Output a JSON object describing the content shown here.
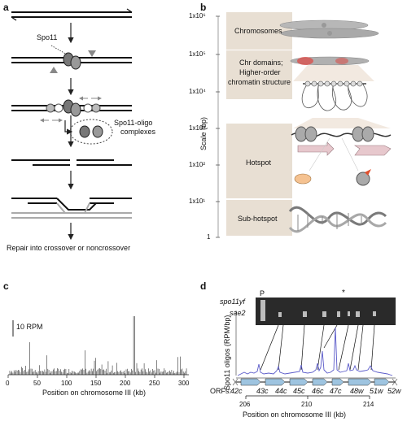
{
  "panels": {
    "a": {
      "letter": "a",
      "spo11_label": "Spo11",
      "complex_label_1": "Spo11-oligo",
      "complex_label_2": "complexes",
      "outcome_label": "Repair into crossover or noncrossover"
    },
    "b": {
      "letter": "b",
      "y_axis_label": "Scale (bp)",
      "ticks": [
        "1x10⁶",
        "1x10⁵",
        "1x10⁴",
        "1x10³",
        "1x10²",
        "1x10¹",
        "1"
      ],
      "levels": [
        {
          "label": "Chromosomes"
        },
        {
          "label_1": "Chr domains;",
          "label_2": "Higher-order",
          "label_3": "chromatin structure"
        },
        {
          "label": "Hotspot"
        },
        {
          "label": "Sub-hotspot"
        }
      ]
    },
    "c": {
      "letter": "c",
      "scale_label": "10 RPM",
      "x_label": "Position on chromosome III (kb)",
      "ticks": [
        "0",
        "50",
        "100",
        "150",
        "200",
        "250",
        "300"
      ]
    },
    "d": {
      "letter": "d",
      "gel_marker": "P",
      "gel_star": "*",
      "lane_1": "spo11yf",
      "lane_2": "sae2",
      "y_label": "Spo11 oligos (RPM/bp)",
      "orf_prefix": "ORFs:",
      "orfs": [
        "42c",
        "43c",
        "44c",
        "45c",
        "46c",
        "47c",
        "48w",
        "51w",
        "52w"
      ],
      "x_ticks": [
        "206",
        "210",
        "214"
      ],
      "x_label": "Position on chromosome III (kb)"
    }
  }
}
